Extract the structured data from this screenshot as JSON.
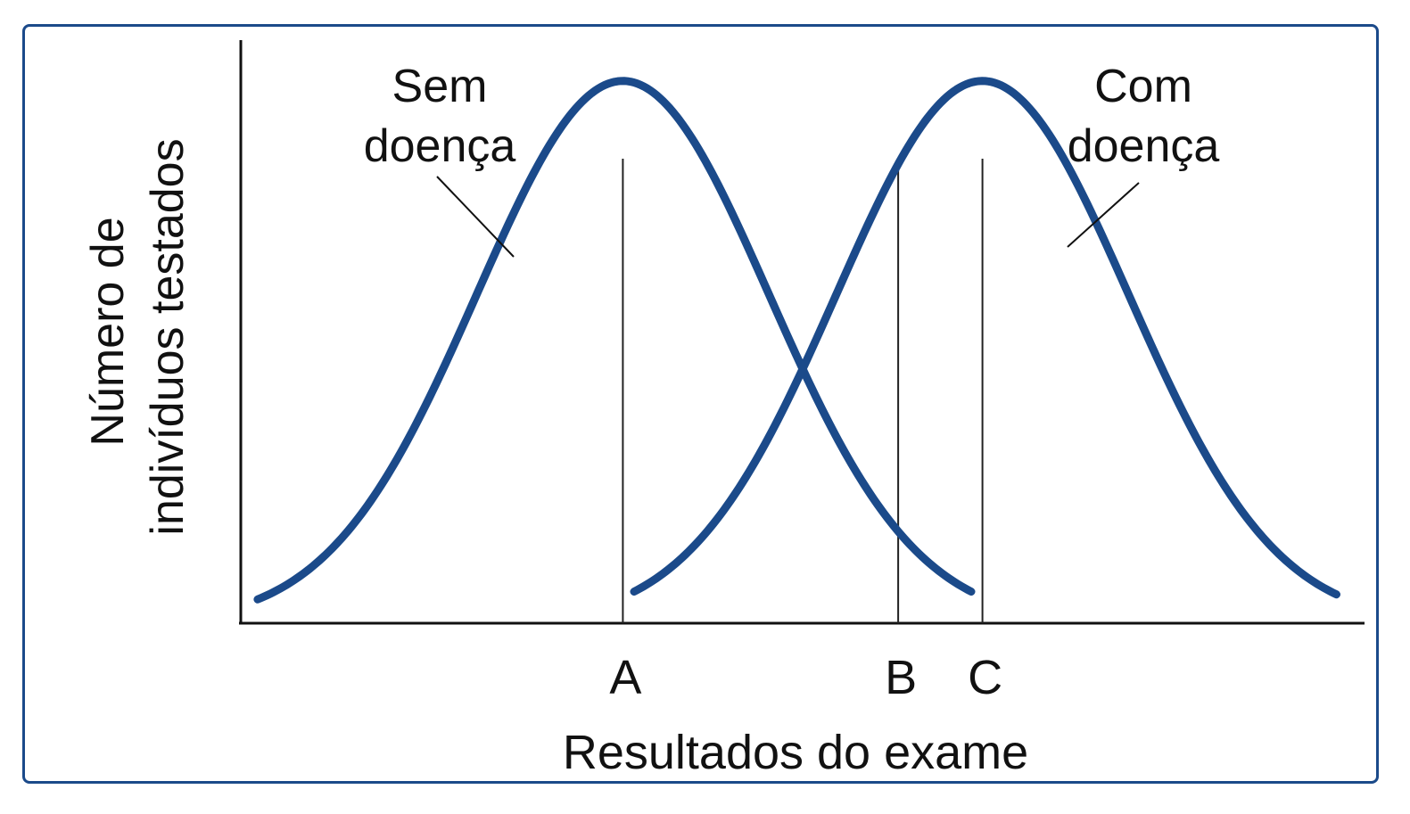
{
  "chart_data": {
    "type": "line",
    "title": "",
    "xlabel": "Resultados do exame",
    "ylabel_lines": [
      "Número de",
      "indivíduos testados"
    ],
    "xlim": [
      0,
      100
    ],
    "ylim": [
      0,
      100
    ],
    "grid": false,
    "legend": "none",
    "series": [
      {
        "name_lines": [
          "Sem",
          "doença"
        ],
        "color": "#1b4a8a",
        "mean": 34,
        "sd": 13,
        "peak": 93,
        "x_range": [
          1.5,
          65
        ]
      },
      {
        "name_lines": [
          "Com",
          "doença"
        ],
        "color": "#1b4a8a",
        "mean": 66,
        "sd": 13,
        "peak": 93,
        "x_range": [
          35,
          97.5
        ]
      }
    ],
    "markers": [
      {
        "label": "A",
        "x": 34
      },
      {
        "label": "B",
        "x": 58.5
      },
      {
        "label": "C",
        "x": 66
      }
    ]
  }
}
